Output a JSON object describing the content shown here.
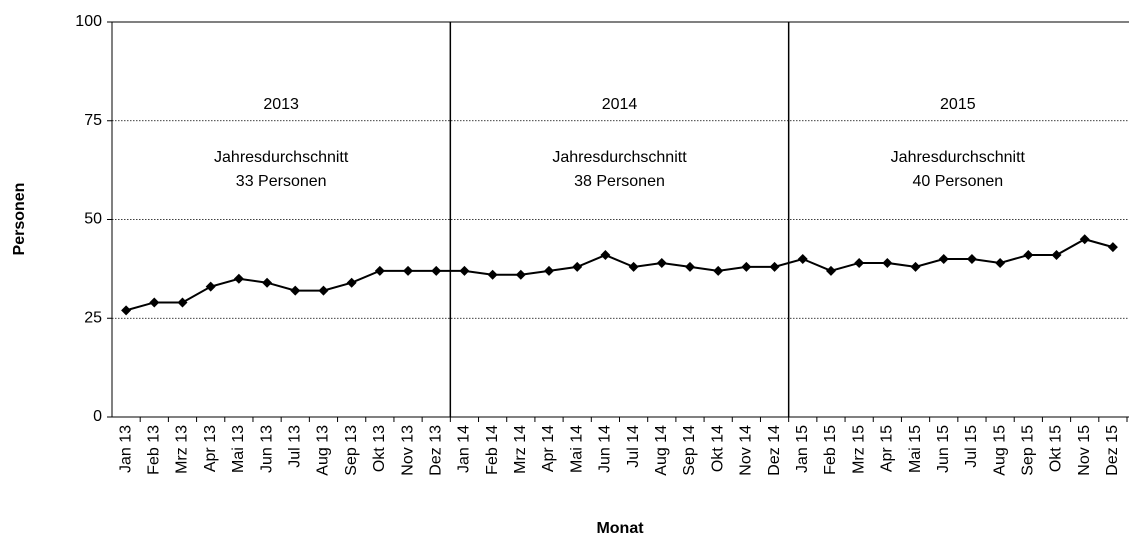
{
  "chart_data": {
    "type": "line",
    "x_label": "Monat",
    "y_label": "Personen",
    "categories": [
      "Jan 13",
      "Feb 13",
      "Mrz 13",
      "Apr 13",
      "Mai 13",
      "Jun 13",
      "Jul 13",
      "Aug 13",
      "Sep 13",
      "Okt 13",
      "Nov 13",
      "Dez 13",
      "Jan 14",
      "Feb 14",
      "Mrz 14",
      "Apr 14",
      "Mai 14",
      "Jun 14",
      "Jul 14",
      "Aug 14",
      "Sep 14",
      "Okt 14",
      "Nov 14",
      "Dez 14",
      "Jan 15",
      "Feb 15",
      "Mrz 15",
      "Apr 15",
      "Mai 15",
      "Jun 15",
      "Jul 15",
      "Aug 15",
      "Sep 15",
      "Okt 15",
      "Nov 15",
      "Dez 15"
    ],
    "values": [
      27,
      29,
      29,
      33,
      35,
      34,
      32,
      32,
      34,
      37,
      37,
      37,
      37,
      36,
      36,
      37,
      38,
      41,
      38,
      39,
      38,
      37,
      38,
      38,
      40,
      37,
      39,
      39,
      38,
      40,
      40,
      39,
      41,
      41,
      45,
      43
    ],
    "color": "#000000",
    "ylim": [
      0,
      100
    ],
    "yticks": [
      0,
      25,
      50,
      75,
      100
    ],
    "grid": true,
    "annotations": [
      {
        "year": "2013",
        "label": "Jahresdurchschnitt",
        "average": "33 Personen"
      },
      {
        "year": "2014",
        "label": "Jahresdurchschnitt",
        "average": "38 Personen"
      },
      {
        "year": "2015",
        "label": "Jahresdurchschnitt",
        "average": "40 Personen"
      }
    ]
  }
}
